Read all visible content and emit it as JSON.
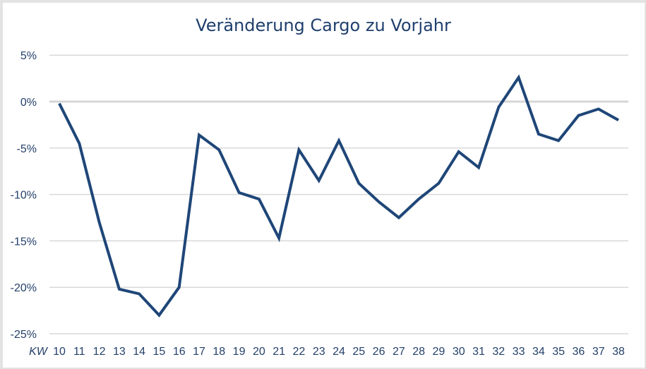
{
  "chart_data": {
    "type": "line",
    "title": "Veränderung Cargo zu Vorjahr",
    "xlabel": "KW",
    "ylabel": "",
    "ylim": [
      -25,
      5
    ],
    "yticks": [
      5,
      0,
      -5,
      -10,
      -15,
      -20,
      -25
    ],
    "ytick_labels": [
      "5%",
      "0%",
      "-5%",
      "-10%",
      "-15%",
      "-20%",
      "-25%"
    ],
    "categories": [
      "10",
      "11",
      "12",
      "13",
      "14",
      "15",
      "16",
      "17",
      "18",
      "19",
      "20",
      "21",
      "22",
      "23",
      "24",
      "25",
      "26",
      "27",
      "28",
      "29",
      "30",
      "31",
      "32",
      "33",
      "34",
      "35",
      "36",
      "37",
      "38"
    ],
    "series": [
      {
        "name": "Veränderung Cargo zu Vorjahr",
        "color": "#1f4678",
        "values": [
          -0.2,
          -4.5,
          -13.0,
          -20.2,
          -20.7,
          -23.0,
          -20.0,
          -3.6,
          -5.2,
          -9.8,
          -10.5,
          -14.7,
          -5.2,
          -8.5,
          -4.2,
          -8.8,
          -10.8,
          -12.5,
          -10.5,
          -8.8,
          -5.4,
          -7.1,
          -0.6,
          2.6,
          -3.5,
          -4.2,
          -1.5,
          -0.8,
          -2.0
        ]
      }
    ],
    "grid": true,
    "legend": "none"
  }
}
